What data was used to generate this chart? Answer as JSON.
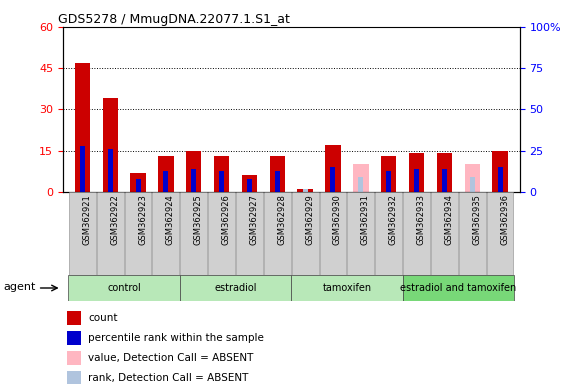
{
  "title": "GDS5278 / MmugDNA.22077.1.S1_at",
  "samples": [
    "GSM362921",
    "GSM362922",
    "GSM362923",
    "GSM362924",
    "GSM362925",
    "GSM362926",
    "GSM362927",
    "GSM362928",
    "GSM362929",
    "GSM362930",
    "GSM362931",
    "GSM362932",
    "GSM362933",
    "GSM362934",
    "GSM362935",
    "GSM362936"
  ],
  "count": [
    47,
    34,
    7,
    13,
    15,
    13,
    6,
    13,
    1,
    17,
    7,
    13,
    14,
    14,
    6,
    15
  ],
  "rank": [
    28,
    26,
    8,
    13,
    14,
    13,
    8,
    13,
    0,
    15,
    0,
    13,
    14,
    14,
    0,
    15
  ],
  "absent_count": [
    0,
    0,
    0,
    0,
    0,
    0,
    0,
    0,
    0,
    0,
    10,
    0,
    0,
    0,
    10,
    0
  ],
  "absent_rank": [
    0,
    0,
    0,
    0,
    0,
    0,
    0,
    0,
    2,
    0,
    9,
    0,
    0,
    0,
    9,
    0
  ],
  "groups": [
    {
      "label": "control",
      "start": 0,
      "end": 4,
      "color": "#b8e8b8"
    },
    {
      "label": "estradiol",
      "start": 4,
      "end": 8,
      "color": "#b8e8b8"
    },
    {
      "label": "tamoxifen",
      "start": 8,
      "end": 12,
      "color": "#b8e8b8"
    },
    {
      "label": "estradiol and tamoxifen",
      "start": 12,
      "end": 16,
      "color": "#78d878"
    }
  ],
  "ylim_left": [
    0,
    60
  ],
  "ylim_right": [
    0,
    100
  ],
  "yticks_left": [
    0,
    15,
    30,
    45,
    60
  ],
  "yticks_right": [
    0,
    25,
    50,
    75,
    100
  ],
  "count_color": "#cc0000",
  "rank_color": "#0000cc",
  "absent_count_color": "#ffb6c1",
  "absent_rank_color": "#b0c4de",
  "legend_items": [
    {
      "label": "count",
      "color": "#cc0000"
    },
    {
      "label": "percentile rank within the sample",
      "color": "#0000cc"
    },
    {
      "label": "value, Detection Call = ABSENT",
      "color": "#ffb6c1"
    },
    {
      "label": "rank, Detection Call = ABSENT",
      "color": "#b0c4de"
    }
  ]
}
